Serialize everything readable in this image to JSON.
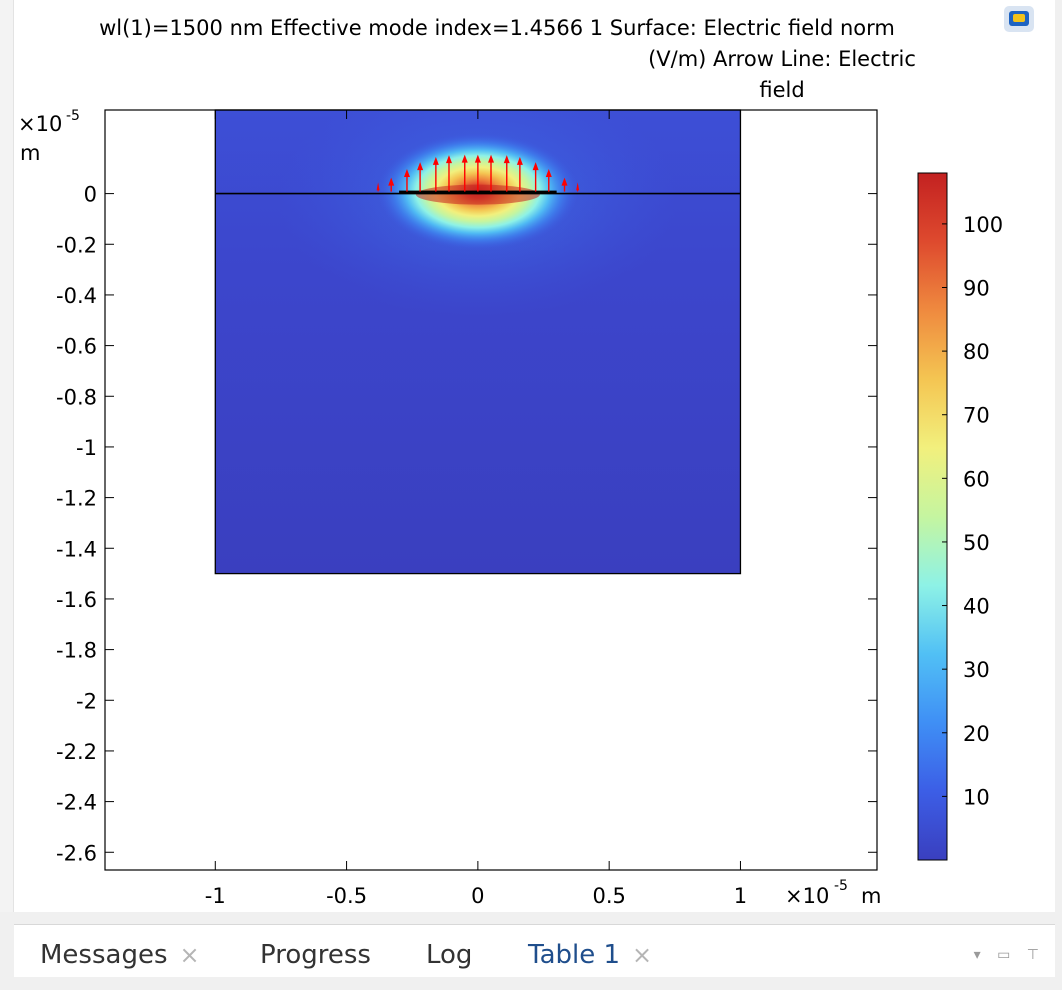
{
  "title": {
    "line1": "wl(1)=1500 nm Effective mode index=1.4566 1 Surface: Electric field norm",
    "line2": "(V/m)  Arrow Line: Electric",
    "line3": "field"
  },
  "chart_data": {
    "type": "heatmap",
    "description_free": true,
    "x_axis": {
      "multiplier_label": "×10",
      "exponent": "-5",
      "unit": "m",
      "ticks": [
        -1,
        -0.5,
        0,
        0.5,
        1
      ],
      "tick_labels": [
        "-1",
        "-0.5",
        "0",
        "0.5",
        "1"
      ],
      "range": [
        -1.42,
        1.52
      ]
    },
    "y_axis": {
      "multiplier_label": "×10",
      "exponent": "-5",
      "unit": "m",
      "ticks": [
        0,
        -0.2,
        -0.4,
        -0.6,
        -0.8,
        -1,
        -1.2,
        -1.4,
        -1.6,
        -1.8,
        -2,
        -2.2,
        -2.4,
        -2.6
      ],
      "tick_labels": [
        "0",
        "-0.2",
        "-0.4",
        "-0.6",
        "-0.8",
        "-1",
        "-1.2",
        "-1.4",
        "-1.6",
        "-1.8",
        "-2",
        "-2.2",
        "-2.4",
        "-2.6"
      ],
      "range": [
        -2.67,
        0.33
      ]
    },
    "domain": {
      "x": [
        -1,
        1
      ],
      "y": [
        -1.5,
        0.33
      ]
    },
    "interface_y": 0,
    "strip": {
      "x": [
        -0.3,
        0.3
      ],
      "y": 0
    },
    "field_peak": {
      "x": 0,
      "y": 0,
      "value": 108
    },
    "colorbar": {
      "range": [
        0,
        108
      ],
      "ticks": [
        10,
        20,
        30,
        40,
        50,
        60,
        70,
        80,
        90,
        100
      ],
      "tick_labels": [
        "10",
        "20",
        "30",
        "40",
        "50",
        "60",
        "70",
        "80",
        "90",
        "100"
      ],
      "colors": [
        "#3a3fbf",
        "#3c5ee6",
        "#3f8ff5",
        "#51c0f5",
        "#8ef2e6",
        "#c5f5a0",
        "#f2f07d",
        "#f4c552",
        "#ef8a3f",
        "#de4a2e",
        "#c32121"
      ]
    },
    "arrows": {
      "x": [
        -0.38,
        -0.33,
        -0.27,
        -0.22,
        -0.16,
        -0.11,
        -0.05,
        0,
        0.05,
        0.11,
        0.16,
        0.22,
        0.27,
        0.33,
        0.38
      ],
      "y": 0,
      "color": "#ff0000"
    },
    "grid": false,
    "legend": "colorbar-right"
  },
  "tabs": [
    {
      "label": "Messages",
      "closable": true,
      "active": false
    },
    {
      "label": "Progress",
      "closable": false,
      "active": false
    },
    {
      "label": "Log",
      "closable": false,
      "active": false
    },
    {
      "label": "Table 1",
      "closable": true,
      "active": true
    }
  ],
  "tab_close_glyph": "×",
  "window_controls": "▾ ▭ ⊤"
}
